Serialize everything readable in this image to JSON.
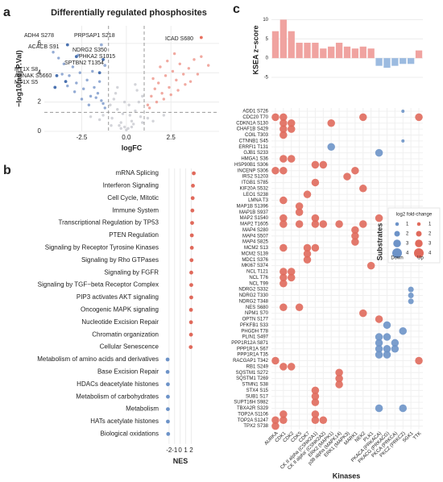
{
  "chart_data": [
    {
      "type": "scatter",
      "panel": "a",
      "title": "Differentially regulated phosphosites",
      "xlabel": "logFC",
      "ylabel": "−log10(adj.P.Val)",
      "xlim": [
        -4.6,
        5.2
      ],
      "ylim": [
        0,
        7.2
      ],
      "xticks": [
        -2.5,
        {
          "value": 0,
          "label": "0.0"
        },
        2.5
      ],
      "yticks": [
        0,
        2,
        4,
        6
      ],
      "grid": true,
      "thresholds": {
        "x": [
          -1,
          1
        ],
        "y": 1.3
      },
      "series": [
        {
          "color": "#c4c6cc",
          "x": [
            -0.9,
            -0.7,
            -0.5,
            -0.3,
            -0.1,
            0.1,
            0.3,
            0.5,
            0.7,
            0.9,
            -0.8,
            -0.4,
            0.0,
            0.4,
            0.8,
            -0.6,
            -0.2,
            0.2,
            0.6,
            -1.5,
            -2.0,
            1.5,
            2.1,
            -0.5,
            0.5,
            -0.1,
            0.15,
            -0.85,
            0.9,
            1.2,
            -1.3,
            -0.3,
            0.3
          ],
          "values": [
            1.8,
            2.2,
            1.5,
            0.6,
            0.3,
            0.2,
            0.7,
            1.4,
            2.0,
            2.4,
            0.9,
            0.4,
            0.1,
            0.5,
            1.0,
            2.6,
            1.2,
            1.1,
            2.8,
            0.8,
            1.0,
            0.7,
            1.1,
            3.0,
            3.2,
            2.0,
            1.8,
            0.4,
            0.6,
            0.9,
            1.1,
            0.2,
            0.3
          ]
        },
        {
          "color": "#6f8fc6",
          "x": [
            -1.2,
            -1.4,
            -1.6,
            -1.8,
            -2.0,
            -2.2,
            -2.4,
            -2.6,
            -2.8,
            -3.0,
            -3.2,
            -3.5,
            -3.8,
            -4.1,
            -1.3,
            -1.7,
            -2.1,
            -2.5,
            -2.9,
            -3.3,
            -1.5,
            -1.9,
            -2.7,
            -3.6
          ],
          "values": [
            1.6,
            2.1,
            2.6,
            3.0,
            2.4,
            3.5,
            2.9,
            4.0,
            3.3,
            4.4,
            3.8,
            4.6,
            5.0,
            5.4,
            1.9,
            2.3,
            1.8,
            2.2,
            2.7,
            3.1,
            3.4,
            4.1,
            5.2,
            3.9
          ]
        },
        {
          "color": "#ec8c80",
          "x": [
            1.2,
            1.4,
            1.6,
            1.8,
            2.0,
            2.2,
            2.4,
            2.6,
            2.8,
            3.0,
            3.2,
            3.5,
            3.8,
            4.2,
            4.6,
            1.3,
            1.7,
            2.1,
            2.5,
            2.9,
            3.3,
            1.5,
            1.9,
            2.3,
            2.7,
            3.6,
            4.0
          ],
          "values": [
            1.8,
            2.4,
            2.9,
            3.3,
            2.6,
            3.8,
            3.0,
            4.1,
            3.5,
            4.6,
            3.9,
            4.3,
            4.9,
            5.1,
            4.5,
            1.6,
            2.0,
            2.2,
            2.5,
            2.8,
            3.2,
            3.6,
            4.4,
            4.8,
            5.3,
            3.4,
            3.9
          ]
        }
      ],
      "annotations": [
        {
          "text": "ADH4 S278",
          "x": -3.3,
          "y": 5.9,
          "color": "#4a72b0"
        },
        {
          "text": "PRPSAP1 S218",
          "x": -1.4,
          "y": 5.9,
          "color": "#9ab0d6"
        },
        {
          "text": "ACACB S91",
          "x": -2.8,
          "y": 5.1,
          "color": "#4a72b0"
        },
        {
          "text": "NDRG2 S350",
          "x": -1.3,
          "y": 4.9,
          "color": "#4a72b0"
        },
        {
          "text": "PHKA2 S1015",
          "x": -1.2,
          "y": 4.5,
          "color": "#9ab0d6"
        },
        {
          "text": "SPTBN2 T1354",
          "x": -1.5,
          "y": 4.0,
          "color": "#4a72b0"
        },
        {
          "text": "MT1X S8",
          "x": -3.9,
          "y": 3.8,
          "color": "#4a72b0"
        },
        {
          "text": "AHNAK S5660",
          "x": -3.4,
          "y": 3.4,
          "color": "#4a72b0"
        },
        {
          "text": "MT1X S5",
          "x": -4.0,
          "y": 3.0,
          "color": "#4a72b0"
        },
        {
          "text": "ICAD S680",
          "x": 4.2,
          "y": 6.4,
          "color": "#e8705f"
        }
      ]
    },
    {
      "type": "dot",
      "panel": "b",
      "xlabel": "NES",
      "categories": [
        "mRNA Splicing",
        "Interferon Signaling",
        "Cell Cycle, Mitotic",
        "Immune System",
        "Transcriptional Regulation by TP53",
        "PTEN Regulation",
        "Signaling by Receptor Tyrosine Kinases",
        "Signaling by Rho GTPases",
        "Signaling by FGFR",
        "Signaling by TGF−beta Receptor Complex",
        "PIP3 activates AKT signaling",
        "Oncogenic MAPK signaling",
        "Nucleotide Excision Repair",
        "Chromatin organization",
        "Cellular Senescence",
        "Metabolism of amino acids and derivatives",
        "Base Excision Repair",
        "HDACs deacetylate histones",
        "Metabolism of carbohydrates",
        "Metabolism",
        "HATs acetylate histones",
        "Biological oxidations"
      ],
      "values": [
        2.45,
        2.3,
        2.25,
        2.2,
        2.15,
        2.1,
        2.1,
        2.05,
        2.0,
        2.0,
        2.0,
        1.95,
        1.95,
        1.95,
        1.9,
        -2.25,
        -2.25,
        -2.2,
        -2.2,
        -2.2,
        -2.2,
        -2.15
      ],
      "colors": {
        "positive": "#e06a5c",
        "negative": "#6d93c8"
      },
      "xlim": [
        -2.7,
        2.8
      ],
      "xticks": [
        -2,
        -1,
        0,
        1,
        2
      ],
      "grid": true
    },
    {
      "type": "bubble",
      "panel": "c",
      "xlabel": "Kinases",
      "ylabel": "Substrates",
      "kinases": [
        "AURKA",
        "CDK1",
        "CDK2",
        "CDK5",
        "CDK7",
        "CK II alpha (CSNK2A1)",
        "CK II alpha' (CSNK2A2)",
        "ERK2 (MAPK1)",
        "p38 alpha (MAPK14)",
        "ERK1 (MAPK3)",
        "MARK1",
        "NEK2",
        "PLK1",
        "PKACA (PRKACA)",
        "PKACG (PRKACG)",
        "PKCA (PRKCA)",
        "PKCZ (PRKCZ)",
        "SGK1",
        "TTK"
      ],
      "zscore": {
        "ylabel": "KSEA z−score",
        "values": [
          7,
          10,
          7,
          4,
          4,
          4,
          2.5,
          3,
          4,
          3,
          2.5,
          3,
          2.5,
          -2,
          -2.5,
          -2,
          -1.5,
          -1.5,
          2
        ],
        "positive_color": "#f0a3a0",
        "negative_color": "#9cbbe0",
        "ylim": [
          -5,
          10.5
        ],
        "yticks": [
          -5,
          0,
          5,
          10
        ]
      },
      "substrates": [
        "ADD1 S726",
        "CDC20 T70",
        "CDKN1A S130",
        "CHAF1B S429",
        "COIL T303",
        "CTNNB1 S45",
        "ERRFI1 T131",
        "GJB1 S233",
        "HMGA1 S36",
        "HSP90B1 S306",
        "INCENP S306",
        "IRS2 S1203",
        "ITGB1 S785",
        "KIF20A S532",
        "LEO1 S238",
        "LMNA T3",
        "MAP1B S1396",
        "MAP1B S937",
        "MAP2 S1540",
        "MAP2 T1605",
        "MAP4 S280",
        "MAP4 S507",
        "MAP4 S825",
        "MCM2 S13",
        "MCM2 S139",
        "MDC1 S376",
        "MKI67 S374",
        "NCL T121",
        "NCL T76",
        "NCL T99",
        "NDRG2 S332",
        "NDRG2 T330",
        "NDRG2 T348",
        "NES S680",
        "NPM1 S70",
        "OPTN S177",
        "PFKFB1 S33",
        "PHGDH T78",
        "PLIN1 S497",
        "PPP1R12A S871",
        "PPP1R1A S67",
        "PPP1R1A T35",
        "RACGAP1 T342",
        "RB1 S249",
        "SQSTM1 S272",
        "SQSTM1 T269",
        "STMN1 S38",
        "STX4 S15",
        "SUB1 S17",
        "SUPT16H S982",
        "TBXA2R S329",
        "TOP2A S1106",
        "TOP2A S1247",
        "TPX2 S738"
      ],
      "colors": {
        "up": "#e06a5c",
        "down": "#6d93c8"
      },
      "points": [
        {
          "s": "ADD1 S726",
          "k": "PKCZ (PRKCZ)",
          "value": -0.8
        },
        {
          "s": "CDC20 T70",
          "k": "AURKA",
          "value": 3
        },
        {
          "s": "CDC20 T70",
          "k": "CDK1",
          "value": 3
        },
        {
          "s": "CDC20 T70",
          "k": "NEK2",
          "value": 3
        },
        {
          "s": "CDC20 T70",
          "k": "TTK",
          "value": 3
        },
        {
          "s": "CDKN1A S130",
          "k": "CDK1",
          "value": 3
        },
        {
          "s": "CDKN1A S130",
          "k": "CDK2",
          "value": 3
        },
        {
          "s": "CDKN1A S130",
          "k": "ERK2 (MAPK1)",
          "value": 3
        },
        {
          "s": "CHAF1B S429",
          "k": "CDK1",
          "value": 3
        },
        {
          "s": "CHAF1B S429",
          "k": "CDK2",
          "value": 3
        },
        {
          "s": "COIL T303",
          "k": "CDK1",
          "value": 3
        },
        {
          "s": "CTNNB1 S45",
          "k": "PKCZ (PRKCZ)",
          "value": -0.8
        },
        {
          "s": "ERRFI1 T131",
          "k": "ERK2 (MAPK1)",
          "value": -3
        },
        {
          "s": "GJB1 S233",
          "k": "PKACA (PRKACA)",
          "value": -3
        },
        {
          "s": "HMGA1 S36",
          "k": "CDK1",
          "value": 3
        },
        {
          "s": "HMGA1 S36",
          "k": "CDK2",
          "value": 3
        },
        {
          "s": "HSP90B1 S306",
          "k": "CK II alpha (CSNK2A1)",
          "value": 3
        },
        {
          "s": "HSP90B1 S306",
          "k": "CK II alpha' (CSNK2A2)",
          "value": 3
        },
        {
          "s": "INCENP S306",
          "k": "AURKA",
          "value": 3
        },
        {
          "s": "INCENP S306",
          "k": "CDK1",
          "value": 3
        },
        {
          "s": "INCENP S306",
          "k": "MARK1",
          "value": 3
        },
        {
          "s": "IRS2 S1203",
          "k": "ERK1 (MAPK3)",
          "value": 3
        },
        {
          "s": "ITGB1 S785",
          "k": "CK II alpha (CSNK2A1)",
          "value": 3
        },
        {
          "s": "KIF20A S532",
          "k": "NEK2",
          "value": 3
        },
        {
          "s": "LEO1 S238",
          "k": "CDK7",
          "value": 3
        },
        {
          "s": "LMNA T3",
          "k": "CDK1",
          "value": 3
        },
        {
          "s": "MAP1B S1396",
          "k": "CDK5",
          "value": 3
        },
        {
          "s": "MAP1B S937",
          "k": "CDK5",
          "value": 3
        },
        {
          "s": "MAP2 S1540",
          "k": "CDK1",
          "value": 3
        },
        {
          "s": "MAP2 S1540",
          "k": "CK II alpha (CSNK2A1)",
          "value": 3
        },
        {
          "s": "MAP2 S1540",
          "k": "PKACA (PRKACA)",
          "value": 3
        },
        {
          "s": "MAP2 T1605",
          "k": "CDK1",
          "value": 3
        },
        {
          "s": "MAP2 T1605",
          "k": "CDK5",
          "value": 3
        },
        {
          "s": "MAP2 T1605",
          "k": "CK II alpha (CSNK2A1)",
          "value": 3
        },
        {
          "s": "MAP2 T1605",
          "k": "CK II alpha' (CSNK2A2)",
          "value": 3
        },
        {
          "s": "MAP2 T1605",
          "k": "p38 alpha (MAPK14)",
          "value": 3
        },
        {
          "s": "MAP2 T1605",
          "k": "NEK2",
          "value": 3
        },
        {
          "s": "MAP2 T1605",
          "k": "TTK",
          "value": 3
        },
        {
          "s": "MAP4 S280",
          "k": "MARK1",
          "value": 3
        },
        {
          "s": "MAP4 S507",
          "k": "MARK1",
          "value": 3
        },
        {
          "s": "MAP4 S825",
          "k": "MARK1",
          "value": 3
        },
        {
          "s": "MCM2 S13",
          "k": "CDK1",
          "value": 3
        },
        {
          "s": "MCM2 S13",
          "k": "CDK7",
          "value": 3
        },
        {
          "s": "MCM2 S13",
          "k": "CK II alpha (CSNK2A1)",
          "value": 3
        },
        {
          "s": "MCM2 S139",
          "k": "CDK7",
          "value": 3
        },
        {
          "s": "MDC1 S376",
          "k": "CDK7",
          "value": 3
        },
        {
          "s": "MKI67 S374",
          "k": "PLK1",
          "value": 3
        },
        {
          "s": "NCL T121",
          "k": "CDK1",
          "value": 3
        },
        {
          "s": "NCL T121",
          "k": "CDK2",
          "value": 3
        },
        {
          "s": "NCL T76",
          "k": "CDK1",
          "value": 3
        },
        {
          "s": "NCL T76",
          "k": "CDK2",
          "value": 3
        },
        {
          "s": "NCL T99",
          "k": "CDK1",
          "value": 3
        },
        {
          "s": "NDRG2 S332",
          "k": "SGK1",
          "value": -2
        },
        {
          "s": "NDRG2 T330",
          "k": "SGK1",
          "value": -2
        },
        {
          "s": "NDRG2 T348",
          "k": "SGK1",
          "value": -2
        },
        {
          "s": "NES S680",
          "k": "CDK1",
          "value": 3
        },
        {
          "s": "NES S680",
          "k": "CDK5",
          "value": 3
        },
        {
          "s": "NPM1 S70",
          "k": "NEK2",
          "value": 3
        },
        {
          "s": "OPTN S177",
          "k": "PKACA (PRKACA)",
          "value": 3
        },
        {
          "s": "PFKFB1 S33",
          "k": "PKACG (PRKACG)",
          "value": -3
        },
        {
          "s": "PHGDH T78",
          "k": "PKCZ (PRKCZ)",
          "value": -3
        },
        {
          "s": "PLIN1 S497",
          "k": "PKACA (PRKACA)",
          "value": -3
        },
        {
          "s": "PLIN1 S497",
          "k": "PKACG (PRKACG)",
          "value": -3
        },
        {
          "s": "PPP1R12A S871",
          "k": "PKACA (PRKACA)",
          "value": -3
        },
        {
          "s": "PPP1R12A S871",
          "k": "PKCA (PRKCA)",
          "value": -3
        },
        {
          "s": "PPP1R1A S67",
          "k": "PKACA (PRKACA)",
          "value": -3
        },
        {
          "s": "PPP1R1A S67",
          "k": "PKACG (PRKACG)",
          "value": -3
        },
        {
          "s": "PPP1R1A S67",
          "k": "PKCA (PRKCA)",
          "value": -3
        },
        {
          "s": "PPP1R1A T35",
          "k": "PKACA (PRKACA)",
          "value": -3
        },
        {
          "s": "PPP1R1A T35",
          "k": "PKACG (PRKACG)",
          "value": -3
        },
        {
          "s": "RACGAP1 T342",
          "k": "AURKA",
          "value": 3
        },
        {
          "s": "RACGAP1 T342",
          "k": "TTK",
          "value": 3
        },
        {
          "s": "RB1 S249",
          "k": "CDK1",
          "value": 3
        },
        {
          "s": "RB1 S249",
          "k": "CDK2",
          "value": 3
        },
        {
          "s": "SQSTM1 S272",
          "k": "p38 alpha (MAPK14)",
          "value": 3
        },
        {
          "s": "SQSTM1 T269",
          "k": "p38 alpha (MAPK14)",
          "value": 3
        },
        {
          "s": "STMN1 S38",
          "k": "p38 alpha (MAPK14)",
          "value": 3
        },
        {
          "s": "STX4 S15",
          "k": "CK II alpha (CSNK2A1)",
          "value": 3
        },
        {
          "s": "SUB1 S17",
          "k": "CK II alpha (CSNK2A1)",
          "value": 3
        },
        {
          "s": "SUPT16H S982",
          "k": "CK II alpha (CSNK2A1)",
          "value": 3
        },
        {
          "s": "TBXA2R S329",
          "k": "PKACA (PRKACA)",
          "value": -3
        },
        {
          "s": "TBXA2R S329",
          "k": "PKCZ (PRKCZ)",
          "value": -3
        },
        {
          "s": "TOP2A S1106",
          "k": "CDK1",
          "value": 3
        },
        {
          "s": "TOP2A S1106",
          "k": "CK II alpha (CSNK2A1)",
          "value": 3
        },
        {
          "s": "TOP2A S1247",
          "k": "AURKA",
          "value": 3
        },
        {
          "s": "TOP2A S1247",
          "k": "CDK1",
          "value": 3
        },
        {
          "s": "TOP2A S1247",
          "k": "CK II alpha (CSNK2A1)",
          "value": 3
        },
        {
          "s": "TOP2A S1247",
          "k": "CK II alpha' (CSNK2A2)",
          "value": 3
        },
        {
          "s": "TPX2 S738",
          "k": "AURKA",
          "value": 3
        }
      ],
      "legend": {
        "title": "log2 fold-change",
        "sizes": [
          1,
          2,
          3,
          4
        ],
        "down": "Down",
        "up": "Up"
      }
    }
  ]
}
